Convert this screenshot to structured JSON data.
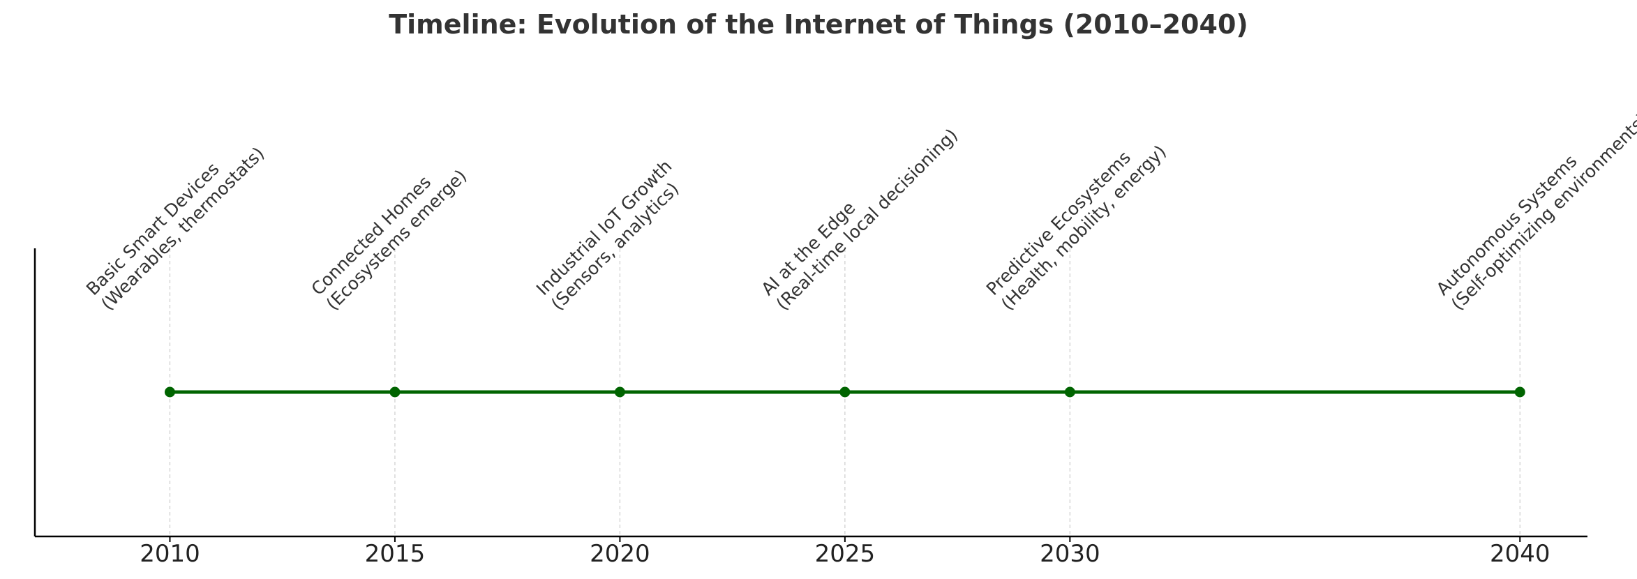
{
  "chart_data": {
    "type": "line",
    "title": "Timeline: Evolution of the Internet of Things (2010–2040)",
    "xlabel": "",
    "ylabel": "",
    "xlim": [
      2007,
      2041.5
    ],
    "x_ticks": [
      2010,
      2015,
      2020,
      2025,
      2030,
      2040
    ],
    "tick_labels": [
      "2010",
      "2015",
      "2020",
      "2025",
      "2030",
      "2040"
    ],
    "grid": "vertical dashed at each milestone",
    "y_axis_visible": false,
    "series": [
      {
        "x": [
          2010,
          2015,
          2020,
          2025,
          2030,
          2040
        ],
        "y": [
          0,
          0,
          0,
          0,
          0,
          0
        ],
        "marker": "circle"
      }
    ],
    "events": [
      {
        "year": 2010,
        "line1": "Basic Smart Devices",
        "line2": "(Wearables, thermostats)"
      },
      {
        "year": 2015,
        "line1": "Connected Homes",
        "line2": "(Ecosystems emerge)"
      },
      {
        "year": 2020,
        "line1": "Industrial IoT Growth",
        "line2": "(Sensors, analytics)"
      },
      {
        "year": 2025,
        "line1": "AI at the Edge",
        "line2": "(Real-time local decisioning)"
      },
      {
        "year": 2030,
        "line1": "Predictive Ecosystems",
        "line2": "(Health, mobility, energy)"
      },
      {
        "year": 2040,
        "line1": "Autonomous Systems",
        "line2": "(Self-optimizing environments)"
      }
    ],
    "colors": {
      "line": "#006400",
      "marker": "#006400",
      "grid": "#cccccc",
      "axis": "#000000",
      "text": "#333333"
    }
  }
}
